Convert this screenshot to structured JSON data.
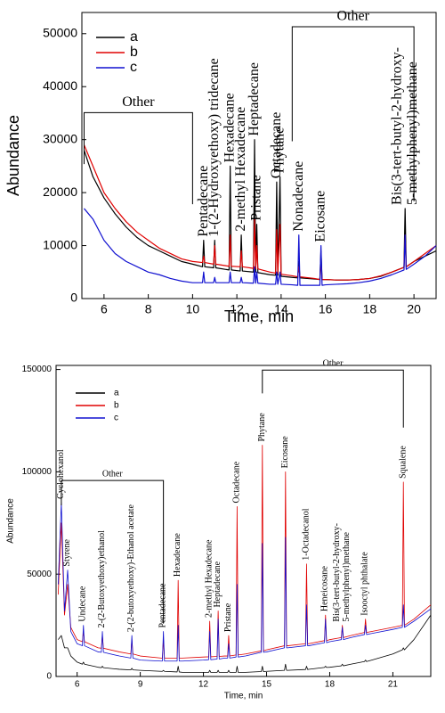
{
  "chart_data": [
    {
      "type": "line",
      "x_label": "Time, min",
      "y_label": "Abundance",
      "xlim": [
        5,
        21
      ],
      "xticks": [
        6,
        8,
        10,
        12,
        14,
        16,
        18,
        20
      ],
      "ylim": [
        0,
        54000
      ],
      "yticks": [
        0,
        10000,
        20000,
        30000,
        40000,
        50000
      ],
      "legend": "upper left",
      "x": [
        5.1,
        5.5,
        6,
        6.5,
        7,
        7.5,
        8,
        8.5,
        9,
        9.5,
        10,
        10.45,
        10.5,
        10.55,
        10.95,
        11.0,
        11.05,
        11.5,
        11.65,
        11.7,
        11.75,
        12.15,
        12.2,
        12.25,
        12.75,
        12.8,
        12.85,
        12.9,
        12.95,
        13.5,
        13.75,
        13.8,
        13.85,
        13.95,
        14.0,
        14.5,
        14.75,
        14.8,
        14.85,
        15.5,
        15.75,
        15.8,
        15.85,
        16,
        16.5,
        17,
        17.5,
        18,
        18.5,
        19,
        19.55,
        19.6,
        19.65,
        20,
        20.5,
        21
      ],
      "series": [
        {
          "name": "a",
          "color": "#000000",
          "values": [
            28000,
            23000,
            19000,
            16000,
            13500,
            11500,
            10000,
            9000,
            8000,
            7000,
            6500,
            6000,
            11000,
            6000,
            5800,
            11000,
            5800,
            5500,
            5400,
            25000,
            5400,
            5200,
            12000,
            5200,
            5000,
            30000,
            5000,
            14000,
            4900,
            4500,
            4400,
            22000,
            4400,
            23000,
            4200,
            4000,
            3900,
            7000,
            3900,
            3700,
            3600,
            9000,
            3600,
            3600,
            3500,
            3500,
            3600,
            3800,
            4200,
            5000,
            5900,
            17000,
            6000,
            7000,
            8000,
            9000
          ]
        },
        {
          "name": "b",
          "color": "#e00000",
          "values": [
            29000,
            25000,
            20000,
            17000,
            14500,
            12500,
            11000,
            9500,
            8500,
            7500,
            7000,
            6800,
            8000,
            6800,
            6500,
            10000,
            6500,
            6200,
            6100,
            12000,
            6100,
            6000,
            9000,
            6000,
            5700,
            15000,
            5700,
            10000,
            5600,
            5000,
            4800,
            13000,
            4800,
            14000,
            4600,
            4300,
            4100,
            6000,
            4100,
            3800,
            3600,
            7000,
            3600,
            3600,
            3500,
            3500,
            3600,
            3800,
            4300,
            5000,
            5900,
            12000,
            6000,
            7000,
            8500,
            10000
          ]
        },
        {
          "name": "c",
          "color": "#1010d0",
          "values": [
            17000,
            15000,
            11000,
            8500,
            7000,
            6000,
            5000,
            4500,
            3800,
            3300,
            3000,
            3000,
            5000,
            3000,
            3000,
            4000,
            3000,
            3000,
            3000,
            5000,
            3000,
            3000,
            4000,
            3000,
            2900,
            6000,
            2900,
            5000,
            2900,
            2700,
            2700,
            5000,
            2700,
            5000,
            2700,
            2600,
            2500,
            12000,
            2500,
            2500,
            2500,
            10000,
            2500,
            2600,
            2700,
            2800,
            3000,
            3300,
            3800,
            4500,
            5400,
            12000,
            5500,
            6500,
            8000,
            10000
          ]
        }
      ],
      "annotations": [
        {
          "lines": [
            "Pentadecane"
          ],
          "x": 10.5
        },
        {
          "lines": [
            "1-(2-Hydroxyethoxy) tridecane"
          ],
          "x": 11.0
        },
        {
          "lines": [
            "Hexadecane"
          ],
          "x": 11.7
        },
        {
          "lines": [
            "2-methyl Hexadecane"
          ],
          "x": 12.2
        },
        {
          "lines": [
            "Heptadecane"
          ],
          "x": 12.8
        },
        {
          "lines": [
            "Pristane"
          ],
          "x": 12.9
        },
        {
          "lines": [
            "Octadecane"
          ],
          "x": 13.8
        },
        {
          "lines": [
            "Phytane"
          ],
          "x": 13.95
        },
        {
          "lines": [
            "Nonadecane"
          ],
          "x": 14.8
        },
        {
          "lines": [
            "Eicosane"
          ],
          "x": 15.8
        },
        {
          "lines": [
            "Bis(3-tert-butyl-2-hydroxy-",
            "5-methylphenyl)methane"
          ],
          "x": 19.6
        }
      ],
      "brackets": [
        {
          "text": "Other",
          "x": [
            5.1,
            10
          ]
        },
        {
          "text": "Other",
          "x": [
            14.5,
            20
          ]
        }
      ]
    },
    {
      "type": "line",
      "x_label": "Time, min",
      "y_label": "Abundance",
      "xlim": [
        5,
        22.8
      ],
      "xticks": [
        6,
        9,
        12,
        15,
        18,
        21
      ],
      "ylim": [
        0,
        152000
      ],
      "yticks": [
        0,
        50000,
        100000,
        150000
      ],
      "legend": "upper left",
      "x": [
        5.1,
        5.25,
        5.4,
        5.55,
        5.7,
        6,
        6.25,
        6.3,
        6.35,
        7,
        7.15,
        7.2,
        7.25,
        8,
        8.55,
        8.6,
        8.65,
        9,
        10,
        10.05,
        10.1,
        10.15,
        10.75,
        10.8,
        10.85,
        11,
        12,
        12.25,
        12.3,
        12.35,
        12.65,
        12.7,
        12.75,
        13,
        13.15,
        13.2,
        13.25,
        13.55,
        13.6,
        13.65,
        14,
        14.75,
        14.8,
        14.85,
        15,
        15.85,
        15.9,
        15.95,
        16,
        16.85,
        16.9,
        16.95,
        17,
        17.75,
        17.8,
        17.85,
        18,
        18.55,
        18.6,
        18.65,
        19,
        19.65,
        19.7,
        19.75,
        20,
        21,
        21.45,
        21.5,
        21.55,
        22,
        22.8
      ],
      "series": [
        {
          "name": "a",
          "color": "#000000",
          "values": [
            18000,
            20000,
            14000,
            14000,
            10000,
            7000,
            6000,
            7000,
            6000,
            4500,
            4300,
            5000,
            4300,
            3500,
            3200,
            4000,
            3200,
            3000,
            2500,
            2500,
            3000,
            2500,
            2200,
            5000,
            2200,
            2000,
            2000,
            2000,
            3000,
            2000,
            2000,
            3000,
            2000,
            2000,
            2000,
            3000,
            2000,
            2000,
            5000,
            2000,
            2000,
            2400,
            5000,
            2400,
            2500,
            3000,
            6000,
            3000,
            3000,
            3400,
            5000,
            3400,
            3500,
            4400,
            5000,
            4400,
            4500,
            5200,
            6000,
            5200,
            6000,
            7300,
            8000,
            7300,
            8000,
            11000,
            13000,
            14000,
            13000,
            18000,
            30000
          ]
        },
        {
          "name": "b",
          "color": "#e00000",
          "values": [
            40000,
            75000,
            30000,
            45000,
            24000,
            18000,
            17000,
            22000,
            17000,
            14000,
            13800,
            20000,
            13800,
            12000,
            11000,
            18000,
            11000,
            10000,
            9000,
            9000,
            18000,
            9000,
            9000,
            47000,
            9000,
            9000,
            9500,
            9600,
            27000,
            9600,
            9800,
            32000,
            9800,
            10000,
            10000,
            20000,
            10000,
            10500,
            83000,
            10500,
            11000,
            12500,
            113000,
            12500,
            13000,
            15000,
            100000,
            15000,
            15000,
            16000,
            55000,
            16000,
            16000,
            17500,
            30000,
            17500,
            18000,
            19000,
            25000,
            19000,
            20000,
            21500,
            28000,
            21500,
            22000,
            24000,
            25000,
            95000,
            25000,
            28000,
            35000
          ]
        },
        {
          "name": "c",
          "color": "#1010d0",
          "values": [
            45000,
            85000,
            32000,
            52000,
            22000,
            16000,
            15000,
            25000,
            15000,
            12000,
            11800,
            22000,
            11800,
            10000,
            9000,
            20000,
            9000,
            8000,
            7500,
            7500,
            22000,
            7500,
            7500,
            25000,
            7500,
            7500,
            8000,
            8200,
            22000,
            8200,
            8500,
            28000,
            8500,
            9000,
            9000,
            16000,
            9000,
            9500,
            45000,
            9500,
            10000,
            11800,
            65000,
            11800,
            12000,
            14000,
            68000,
            14000,
            14000,
            15000,
            35000,
            15000,
            15000,
            16500,
            28000,
            16500,
            17000,
            18000,
            24000,
            18000,
            19000,
            20500,
            25000,
            20500,
            21000,
            23000,
            24000,
            35000,
            24000,
            27000,
            33000
          ]
        }
      ],
      "annotations": [
        {
          "lines": [
            "Cyclohexanol"
          ],
          "x": 5.25
        },
        {
          "lines": [
            "Styrene"
          ],
          "x": 5.55
        },
        {
          "lines": [
            "Undecane"
          ],
          "x": 6.3
        },
        {
          "lines": [
            "2-(2-Butoxyethoxy)ethanol"
          ],
          "x": 7.2
        },
        {
          "lines": [
            "2-(2-butoxyethoxy)-Ethanol acetate"
          ],
          "x": 8.6
        },
        {
          "lines": [
            "Pentadecane"
          ],
          "x": 10.1
        },
        {
          "lines": [
            "Hexadecane"
          ],
          "x": 10.8
        },
        {
          "lines": [
            "2-methyl Hexadecane"
          ],
          "x": 12.3
        },
        {
          "lines": [
            "Heptadecane"
          ],
          "x": 12.7
        },
        {
          "lines": [
            "Pristane"
          ],
          "x": 13.2
        },
        {
          "lines": [
            "Octadecane"
          ],
          "x": 13.6
        },
        {
          "lines": [
            "Phytane"
          ],
          "x": 14.8
        },
        {
          "lines": [
            "Eicosane"
          ],
          "x": 15.9
        },
        {
          "lines": [
            "1-Octadecanol"
          ],
          "x": 16.9
        },
        {
          "lines": [
            "Heneicosane"
          ],
          "x": 17.8
        },
        {
          "lines": [
            "Bis(3-tert-butyl-2-hydroxy-",
            "5-methylphenyl)methane"
          ],
          "x": 18.6
        },
        {
          "lines": [
            "Isooctyl phthalate"
          ],
          "x": 19.7
        },
        {
          "lines": [
            "Squalene"
          ],
          "x": 21.5
        }
      ],
      "brackets": [
        {
          "text": "Other",
          "x": [
            5.25,
            10.1
          ]
        },
        {
          "text": "Other",
          "x": [
            14.8,
            21.5
          ]
        }
      ]
    }
  ]
}
